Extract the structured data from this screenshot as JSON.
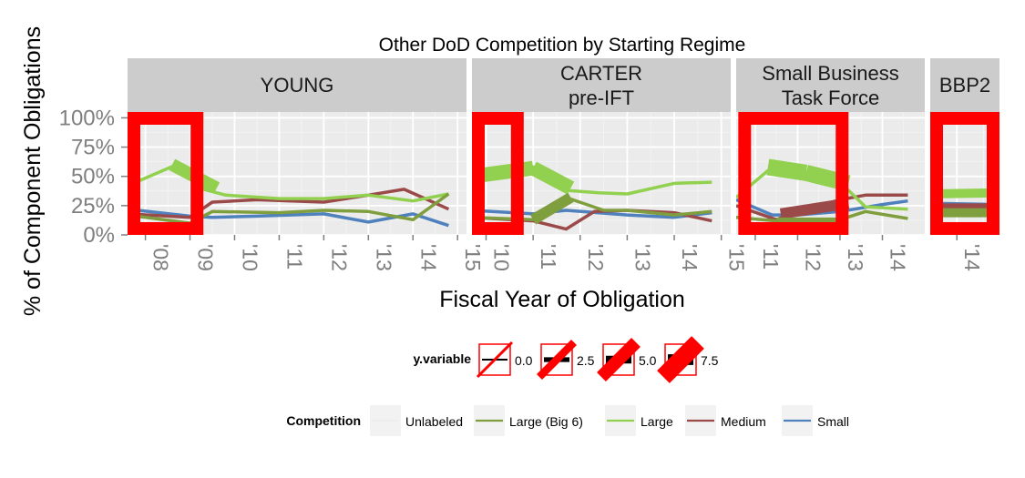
{
  "chart_data": {
    "type": "line",
    "title": "Other DoD Competition by Starting Regime",
    "xlabel": "Fiscal Year of Obligation",
    "ylabel": "% of Component Obligations",
    "ylim": [
      0,
      1.05
    ],
    "y_ticks": [
      {
        "value": 0,
        "label": "0%"
      },
      {
        "value": 0.25,
        "label": "25%"
      },
      {
        "value": 0.5,
        "label": "50%"
      },
      {
        "value": 0.75,
        "label": "75%"
      },
      {
        "value": 1.0,
        "label": "100%"
      }
    ],
    "grid": true,
    "panels": [
      {
        "title": [
          "YOUNG"
        ],
        "xlim": [
          2007.6,
          2015.2
        ],
        "x_ticks": [
          {
            "value": 2008,
            "label": "'08"
          },
          {
            "value": 2009,
            "label": "'09"
          },
          {
            "value": 2010,
            "label": "'10"
          },
          {
            "value": 2011,
            "label": "'11"
          },
          {
            "value": 2012,
            "label": "'12"
          },
          {
            "value": 2013,
            "label": "'13"
          },
          {
            "value": 2014,
            "label": "'14"
          },
          {
            "value": 2015,
            "label": "'15"
          }
        ],
        "series": [
          {
            "key": "small",
            "points": [
              [
                2007.6,
                0.22
              ],
              [
                2009.0,
                0.16
              ],
              [
                2009.5,
                0.15
              ],
              [
                2010.5,
                0.16
              ],
              [
                2012.0,
                0.18
              ],
              [
                2013.0,
                0.11
              ],
              [
                2014.0,
                0.18
              ],
              [
                2014.8,
                0.08
              ]
            ]
          },
          {
            "key": "medium",
            "points": [
              [
                2007.6,
                0.18
              ],
              [
                2009.0,
                0.15
              ],
              [
                2009.5,
                0.28
              ],
              [
                2010.5,
                0.3
              ],
              [
                2012.0,
                0.28
              ],
              [
                2013.0,
                0.34
              ],
              [
                2013.8,
                0.39
              ],
              [
                2014.8,
                0.22
              ]
            ]
          },
          {
            "key": "large",
            "points": [
              [
                2007.6,
                0.42
              ],
              [
                2008.7,
                0.6
              ],
              [
                2009.2,
                0.4
              ],
              [
                2009.8,
                0.34
              ],
              [
                2011.0,
                0.31
              ],
              [
                2012.0,
                0.31
              ],
              [
                2013.0,
                0.34
              ],
              [
                2014.0,
                0.29
              ],
              [
                2014.8,
                0.35
              ]
            ]
          },
          {
            "key": "large_big6",
            "points": [
              [
                2007.6,
                0.17
              ],
              [
                2009.0,
                0.1
              ],
              [
                2009.5,
                0.2
              ],
              [
                2011.0,
                0.19
              ],
              [
                2012.0,
                0.21
              ],
              [
                2013.0,
                0.2
              ],
              [
                2014.0,
                0.13
              ],
              [
                2014.8,
                0.35
              ]
            ]
          }
        ],
        "thick_segments": [
          {
            "key": "large",
            "from": [
              2008.6,
              0.6
            ],
            "to": [
              2009.6,
              0.4
            ],
            "width": 14
          }
        ],
        "frames": [
          [
            2007.6,
            2009.3
          ]
        ]
      },
      {
        "title": [
          "CARTER",
          "pre-IFT"
        ],
        "xlim": [
          2009.7,
          2015.2
        ],
        "x_ticks": [
          {
            "value": 2010,
            "label": "'10"
          },
          {
            "value": 2011,
            "label": "'11"
          },
          {
            "value": 2012,
            "label": "'12"
          },
          {
            "value": 2013,
            "label": "'13"
          },
          {
            "value": 2014,
            "label": "'14"
          },
          {
            "value": 2015,
            "label": "'15"
          }
        ],
        "series": [
          {
            "key": "small",
            "points": [
              [
                2009.7,
                0.21
              ],
              [
                2011.0,
                0.18
              ],
              [
                2011.7,
                0.21
              ],
              [
                2013.0,
                0.17
              ],
              [
                2014.0,
                0.15
              ],
              [
                2014.8,
                0.19
              ]
            ]
          },
          {
            "key": "medium",
            "points": [
              [
                2009.7,
                0.15
              ],
              [
                2011.0,
                0.12
              ],
              [
                2011.7,
                0.05
              ],
              [
                2012.3,
                0.2
              ],
              [
                2013.0,
                0.21
              ],
              [
                2014.0,
                0.19
              ],
              [
                2014.8,
                0.12
              ]
            ]
          },
          {
            "key": "large",
            "points": [
              [
                2009.7,
                0.49
              ],
              [
                2011.0,
                0.58
              ],
              [
                2011.7,
                0.38
              ],
              [
                2012.4,
                0.36
              ],
              [
                2013.0,
                0.35
              ],
              [
                2014.0,
                0.44
              ],
              [
                2014.8,
                0.45
              ]
            ]
          },
          {
            "key": "large_big6",
            "points": [
              [
                2009.7,
                0.15
              ],
              [
                2011.0,
                0.13
              ],
              [
                2011.7,
                0.32
              ],
              [
                2012.5,
                0.21
              ],
              [
                2013.0,
                0.21
              ],
              [
                2014.0,
                0.17
              ],
              [
                2014.8,
                0.2
              ]
            ]
          }
        ],
        "thick_segments": [
          {
            "key": "large",
            "from": [
              2009.7,
              0.5
            ],
            "to": [
              2011.0,
              0.57
            ],
            "width": 16
          },
          {
            "key": "large",
            "from": [
              2011.0,
              0.57
            ],
            "to": [
              2011.8,
              0.4
            ],
            "width": 16
          },
          {
            "key": "large_big6",
            "from": [
              2011.0,
              0.13
            ],
            "to": [
              2011.8,
              0.32
            ],
            "width": 12
          }
        ],
        "frames": [
          [
            2009.7,
            2010.8
          ]
        ]
      },
      {
        "title": [
          "Small Business",
          "Task Force"
        ],
        "xlim": [
          2010.55,
          2015.0
        ],
        "x_ticks": [
          {
            "value": 2011,
            "label": "'11"
          },
          {
            "value": 2012,
            "label": "'12"
          },
          {
            "value": 2013,
            "label": "'13"
          },
          {
            "value": 2014,
            "label": "'14"
          }
        ],
        "series": [
          {
            "key": "small",
            "points": [
              [
                2010.55,
                0.3
              ],
              [
                2011.4,
                0.17
              ],
              [
                2012.0,
                0.17
              ],
              [
                2013.0,
                0.2
              ],
              [
                2014.0,
                0.26
              ],
              [
                2014.6,
                0.29
              ]
            ]
          },
          {
            "key": "medium",
            "points": [
              [
                2010.55,
                0.25
              ],
              [
                2011.5,
                0.13
              ],
              [
                2012.0,
                0.2
              ],
              [
                2013.0,
                0.3
              ],
              [
                2013.6,
                0.34
              ],
              [
                2014.6,
                0.34
              ]
            ]
          },
          {
            "key": "large",
            "points": [
              [
                2010.55,
                0.32
              ],
              [
                2011.4,
                0.58
              ],
              [
                2012.0,
                0.55
              ],
              [
                2013.0,
                0.45
              ],
              [
                2013.6,
                0.24
              ],
              [
                2014.6,
                0.22
              ]
            ]
          },
          {
            "key": "large_big6",
            "points": [
              [
                2010.55,
                0.15
              ],
              [
                2011.5,
                0.12
              ],
              [
                2012.0,
                0.11
              ],
              [
                2013.0,
                0.13
              ],
              [
                2013.6,
                0.2
              ],
              [
                2014.6,
                0.14
              ]
            ]
          }
        ],
        "thick_segments": [
          {
            "key": "large",
            "from": [
              2011.3,
              0.58
            ],
            "to": [
              2012.2,
              0.53
            ],
            "width": 18
          },
          {
            "key": "large",
            "from": [
              2012.2,
              0.53
            ],
            "to": [
              2013.2,
              0.44
            ],
            "width": 18
          },
          {
            "key": "medium",
            "from": [
              2011.6,
              0.18
            ],
            "to": [
              2013.2,
              0.27
            ],
            "width": 12
          },
          {
            "key": "large_big6",
            "from": [
              2011.5,
              0.11
            ],
            "to": [
              2013.2,
              0.11
            ],
            "width": 10
          }
        ],
        "frames": [
          [
            2010.6,
            2013.2
          ]
        ]
      },
      {
        "title": [
          "BBP2"
        ],
        "xlim": [
          2013.5,
          2014.8
        ],
        "x_ticks": [
          {
            "value": 2014,
            "label": "'14"
          }
        ],
        "series": [
          {
            "key": "small",
            "points": [
              [
                2013.5,
                0.27
              ],
              [
                2014.8,
                0.26
              ]
            ]
          },
          {
            "key": "medium",
            "points": [
              [
                2013.5,
                0.23
              ],
              [
                2014.8,
                0.23
              ]
            ]
          },
          {
            "key": "large_big6",
            "points": [
              [
                2013.5,
                0.19
              ],
              [
                2014.8,
                0.19
              ]
            ]
          },
          {
            "key": "large",
            "points": [
              [
                2013.5,
                0.35
              ],
              [
                2014.8,
                0.36
              ]
            ]
          }
        ],
        "thick_segments": [
          {
            "key": "large",
            "from": [
              2013.5,
              0.35
            ],
            "to": [
              2014.8,
              0.36
            ],
            "width": 10
          },
          {
            "key": "medium",
            "from": [
              2013.5,
              0.23
            ],
            "to": [
              2014.8,
              0.23
            ],
            "width": 10
          },
          {
            "key": "large_big6",
            "from": [
              2013.5,
              0.19
            ],
            "to": [
              2014.8,
              0.19
            ],
            "width": 10
          }
        ],
        "frames": [
          [
            2013.5,
            2014.9
          ]
        ]
      }
    ],
    "legend_size": {
      "title": "y.variable",
      "entries": [
        {
          "label": "0.0",
          "value": 0.0
        },
        {
          "label": "2.5",
          "value": 2.5
        },
        {
          "label": "5.0",
          "value": 5.0
        },
        {
          "label": "7.5",
          "value": 7.5
        }
      ]
    },
    "legend_color": {
      "title": "Competition",
      "entries": [
        {
          "key": "unlabeled",
          "label": "Unlabeled",
          "color": "#ededed"
        },
        {
          "key": "large_big6",
          "label": "Large (Big 6)",
          "color": "#7f9e3d"
        },
        {
          "key": "large",
          "label": "Large",
          "color": "#92d050"
        },
        {
          "key": "medium",
          "label": "Medium",
          "color": "#9b4a4a"
        },
        {
          "key": "small",
          "label": "Small",
          "color": "#4f81bd"
        }
      ]
    },
    "highlight_color": "#ff0000",
    "panel_background": "#ebebeb",
    "strip_background": "#cccccc"
  }
}
